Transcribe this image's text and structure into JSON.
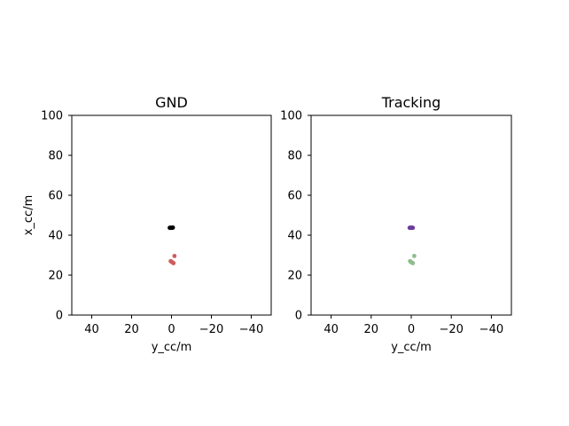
{
  "chart_data": [
    {
      "type": "scatter",
      "title": "GND",
      "xlabel": "y_cc/m",
      "ylabel": "x_cc/m",
      "xlim": [
        50,
        -50
      ],
      "ylim": [
        0,
        100
      ],
      "xticks": [
        "40",
        "20",
        "0",
        "−20",
        "−40"
      ],
      "xtick_values": [
        40,
        20,
        0,
        -20,
        -40
      ],
      "yticks": [
        "0",
        "20",
        "40",
        "60",
        "80",
        "100"
      ],
      "ytick_values": [
        0,
        20,
        40,
        60,
        80,
        100
      ],
      "grid": false,
      "series": [
        {
          "color": "#000000",
          "points": [
            [
              0.9,
              43.7
            ],
            [
              0.5,
              43.7
            ],
            [
              0.1,
              43.7
            ],
            [
              -0.3,
              43.7
            ],
            [
              -0.7,
              43.8
            ]
          ]
        },
        {
          "color": "#cd5c5c",
          "points": [
            [
              -1.5,
              29.6
            ],
            [
              0.4,
              27.0
            ],
            [
              0.0,
              26.7
            ],
            [
              -0.6,
              26.3
            ],
            [
              -1.0,
              26.0
            ]
          ]
        }
      ]
    },
    {
      "type": "scatter",
      "title": "Tracking",
      "xlabel": "y_cc/m",
      "ylabel": "",
      "xlim": [
        50,
        -50
      ],
      "ylim": [
        0,
        100
      ],
      "xticks": [
        "40",
        "20",
        "0",
        "−20",
        "−40"
      ],
      "xtick_values": [
        40,
        20,
        0,
        -20,
        -40
      ],
      "yticks": [
        "0",
        "20",
        "40",
        "60",
        "80",
        "100"
      ],
      "ytick_values": [
        0,
        20,
        40,
        60,
        80,
        100
      ],
      "grid": false,
      "series": [
        {
          "color": "#6a3d9a",
          "points": [
            [
              0.8,
              43.7
            ],
            [
              0.4,
              43.7
            ],
            [
              0.0,
              43.8
            ],
            [
              -0.4,
              43.7
            ],
            [
              -0.8,
              43.7
            ]
          ]
        },
        {
          "color": "#8fbc8f",
          "points": [
            [
              -1.5,
              29.6
            ],
            [
              0.6,
              27.0
            ],
            [
              0.2,
              26.6
            ],
            [
              -0.4,
              26.3
            ],
            [
              -0.8,
              26.0
            ]
          ]
        }
      ]
    }
  ]
}
